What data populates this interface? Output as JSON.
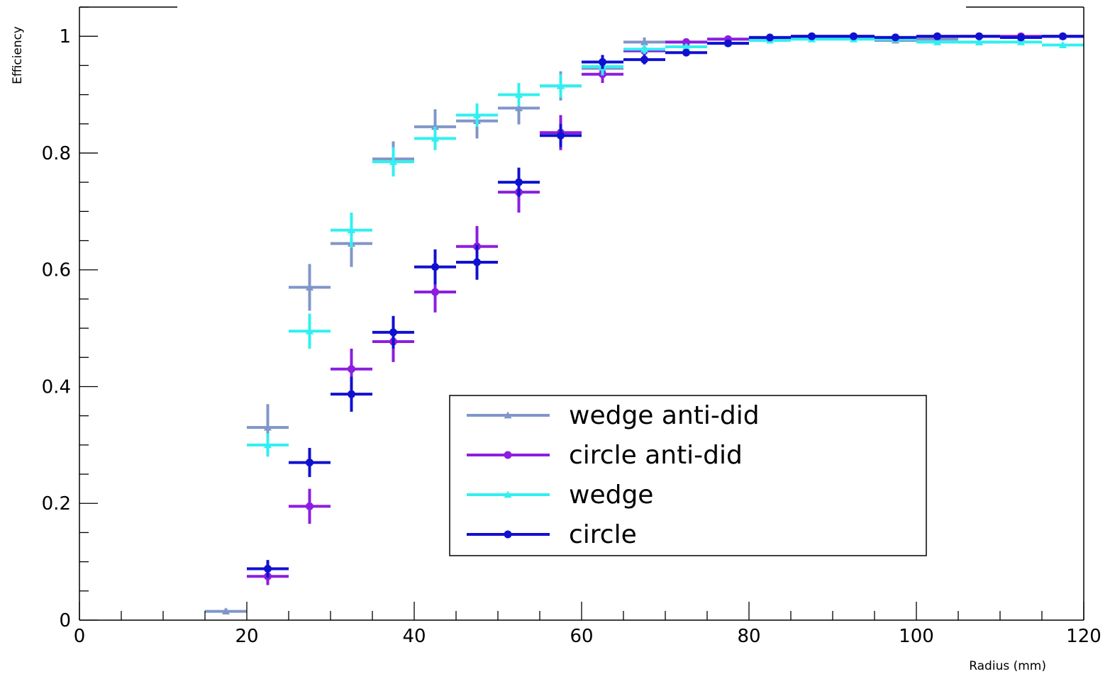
{
  "chart_data": {
    "type": "scatter",
    "title": "",
    "xlabel": "Radius (mm)",
    "ylabel": "Efficiency",
    "xlim": [
      0,
      120
    ],
    "ylim": [
      0,
      1.05
    ],
    "x_major_ticks": [
      0,
      20,
      40,
      60,
      80,
      100,
      120
    ],
    "x_tick_labels": [
      "0",
      "20",
      "40",
      "60",
      "80",
      "100",
      "120"
    ],
    "y_major_ticks": [
      0,
      0.2,
      0.4,
      0.6,
      0.8,
      1
    ],
    "y_tick_labels": [
      "0",
      "0.2",
      "0.4",
      "0.6",
      "0.8",
      "1"
    ],
    "grid": false,
    "bin_half_width": 2.5,
    "legend_position": "bottom-center",
    "series": [
      {
        "name": "wedge anti-did",
        "color": "#8096c8",
        "marker": "triangle",
        "x": [
          17.5,
          22.5,
          27.5,
          32.5,
          37.5,
          42.5,
          47.5,
          52.5,
          57.5,
          62.5,
          67.5,
          72.5,
          77.5,
          82.5,
          87.5,
          92.5,
          97.5,
          102.5,
          107.5,
          112.5,
          117.5
        ],
        "y": [
          0.015,
          0.33,
          0.57,
          0.645,
          0.79,
          0.845,
          0.855,
          0.877,
          0.915,
          0.945,
          0.99,
          0.99,
          0.995,
          0.998,
          1.0,
          1.0,
          0.993,
          0.995,
          0.99,
          0.998,
          1.0
        ],
        "err": [
          0.005,
          0.04,
          0.04,
          0.04,
          0.03,
          0.03,
          0.03,
          0.028,
          0.025,
          0.015,
          0.008,
          0.005,
          0.004,
          0.003,
          0.002,
          0.002,
          0.003,
          0.003,
          0.003,
          0.003,
          0.002
        ]
      },
      {
        "name": "circle anti-did",
        "color": "#8c1ee0",
        "marker": "circle",
        "x": [
          22.5,
          27.5,
          32.5,
          37.5,
          42.5,
          47.5,
          52.5,
          57.5,
          62.5,
          67.5,
          72.5,
          77.5,
          82.5,
          87.5,
          92.5,
          97.5,
          102.5,
          107.5,
          112.5,
          117.5
        ],
        "y": [
          0.075,
          0.195,
          0.43,
          0.477,
          0.562,
          0.64,
          0.733,
          0.835,
          0.935,
          0.975,
          0.99,
          0.995,
          0.997,
          1.0,
          1.0,
          0.998,
          1.0,
          1.0,
          1.0,
          1.0
        ],
        "err": [
          0.015,
          0.03,
          0.035,
          0.035,
          0.035,
          0.035,
          0.035,
          0.03,
          0.015,
          0.01,
          0.005,
          0.004,
          0.003,
          0.002,
          0.002,
          0.002,
          0.002,
          0.002,
          0.002,
          0.002
        ]
      },
      {
        "name": "wedge",
        "color": "#30f0f0",
        "marker": "triangle",
        "x": [
          22.5,
          27.5,
          32.5,
          37.5,
          42.5,
          47.5,
          52.5,
          57.5,
          62.5,
          67.5,
          72.5,
          77.5,
          82.5,
          87.5,
          92.5,
          97.5,
          102.5,
          107.5,
          112.5,
          117.5
        ],
        "y": [
          0.3,
          0.495,
          0.668,
          0.785,
          0.825,
          0.865,
          0.9,
          0.915,
          0.948,
          0.978,
          0.982,
          0.988,
          0.993,
          0.995,
          0.995,
          0.995,
          0.99,
          0.99,
          0.99,
          0.985
        ],
        "err": [
          0.02,
          0.03,
          0.03,
          0.025,
          0.02,
          0.02,
          0.02,
          0.02,
          0.015,
          0.008,
          0.005,
          0.004,
          0.003,
          0.003,
          0.003,
          0.003,
          0.003,
          0.003,
          0.003,
          0.004
        ]
      },
      {
        "name": "circle",
        "color": "#1010d0",
        "marker": "circle",
        "x": [
          22.5,
          27.5,
          32.5,
          37.5,
          42.5,
          47.5,
          52.5,
          57.5,
          62.5,
          67.5,
          72.5,
          77.5,
          82.5,
          87.5,
          92.5,
          97.5,
          102.5,
          107.5,
          112.5,
          117.5
        ],
        "y": [
          0.088,
          0.27,
          0.387,
          0.493,
          0.605,
          0.613,
          0.75,
          0.83,
          0.956,
          0.96,
          0.972,
          0.988,
          0.998,
          1.0,
          1.0,
          0.998,
          1.0,
          1.0,
          0.998,
          1.0
        ],
        "err": [
          0.015,
          0.025,
          0.03,
          0.028,
          0.03,
          0.03,
          0.025,
          0.02,
          0.012,
          0.008,
          0.006,
          0.004,
          0.003,
          0.002,
          0.002,
          0.002,
          0.002,
          0.002,
          0.002,
          0.002
        ]
      }
    ]
  }
}
